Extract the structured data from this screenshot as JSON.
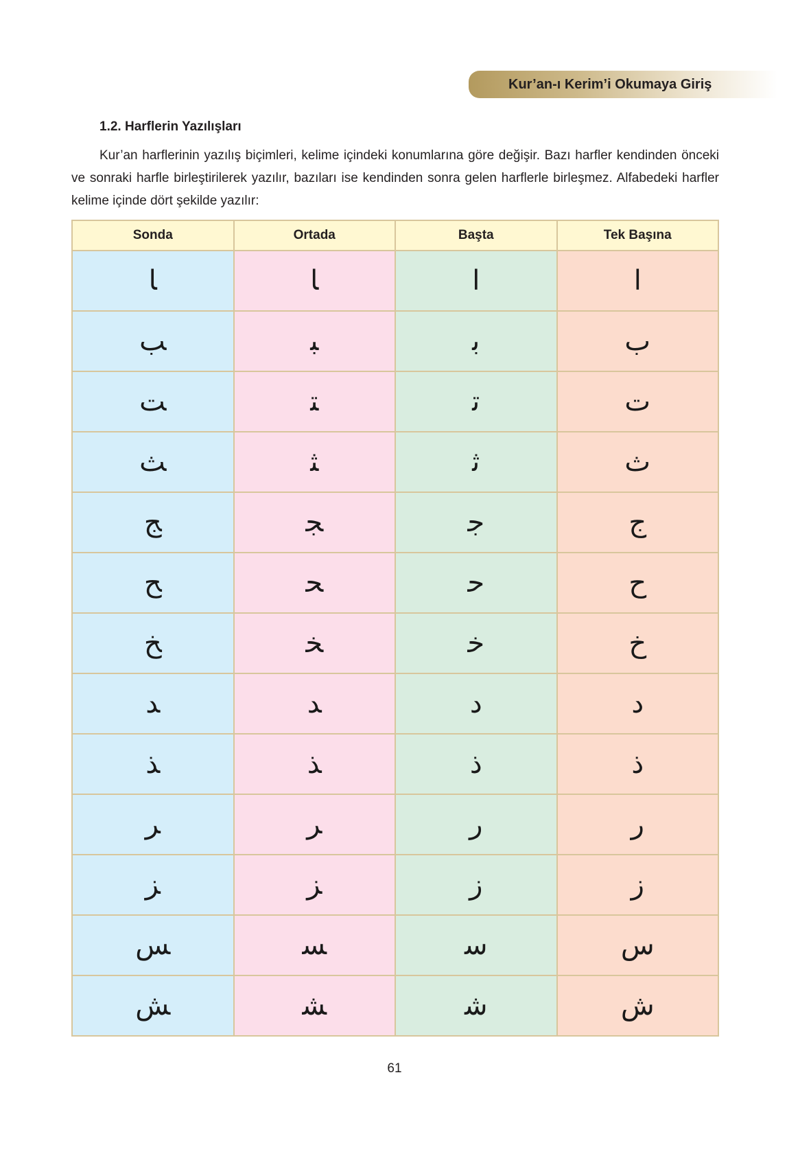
{
  "header": {
    "banner_title": "Kur’an-ı Kerim’i Okumaya Giriş"
  },
  "section": {
    "heading": "1.2. Harflerin Yazılışları",
    "paragraph": "Kur’an harflerinin yazılış biçimleri, kelime içindeki konumlarına göre değişir. Bazı harfler kendinden önceki ve sonraki harfle birleştirilerek yazılır, bazıları ise kendinden sonra gelen harflerle birleşmez. Alfabedeki harfler kelime içinde dört şekilde yazılır:"
  },
  "table": {
    "columns": [
      "Sonda",
      "Ortada",
      "Başta",
      "Tek Başına"
    ],
    "rows": [
      [
        "‍ا",
        "‍ا",
        "ا",
        "ا"
      ],
      [
        "‍ب",
        "‍ب‍",
        "ب‍",
        "ب"
      ],
      [
        "‍ت",
        "‍ت‍",
        "ت‍",
        "ت"
      ],
      [
        "‍ث",
        "‍ث‍",
        "ث‍",
        "ث"
      ],
      [
        "‍ج",
        "‍ج‍",
        "ج‍",
        "ج"
      ],
      [
        "‍ح",
        "‍ح‍",
        "ح‍",
        "ح"
      ],
      [
        "‍خ",
        "‍خ‍",
        "خ‍",
        "خ"
      ],
      [
        "‍د",
        "‍د",
        "د",
        "د"
      ],
      [
        "‍ذ",
        "‍ذ",
        "ذ",
        "ذ"
      ],
      [
        "‍ر",
        "‍ر",
        "ر",
        "ر"
      ],
      [
        "‍ز",
        "‍ز",
        "ز",
        "ز"
      ],
      [
        "‍س",
        "‍س‍",
        "س‍",
        "س"
      ],
      [
        "‍ش",
        "‍ش‍",
        "ش‍",
        "ش"
      ]
    ],
    "colors": {
      "header": "#fff8d2",
      "sonda": "#d5eefa",
      "ortada": "#fcdeea",
      "basta": "#d9ede0",
      "tek_basina": "#fcdccd",
      "border": "#d8c69c"
    }
  },
  "footer": {
    "page_number": "61"
  }
}
